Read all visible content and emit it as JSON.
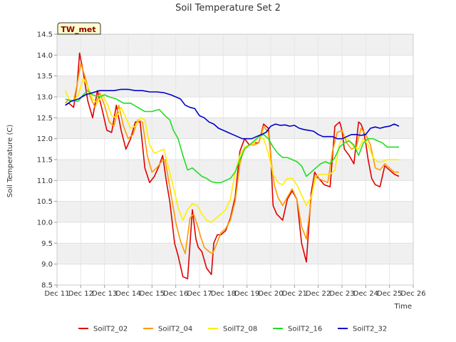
{
  "chart_data": {
    "type": "line",
    "title": "Soil Temperature Set 2",
    "xlabel": "Time",
    "ylabel": "Soil Temperature (C)",
    "badge": "TW_met",
    "xlim": [
      11,
      26
    ],
    "ylim": [
      8.5,
      14.5
    ],
    "x_tick_values": [
      11,
      12,
      13,
      14,
      15,
      16,
      17,
      18,
      19,
      20,
      21,
      22,
      23,
      24,
      25,
      26
    ],
    "x_tick_labels": [
      "Dec 11",
      "Dec 12",
      "Dec 13",
      "Dec 14",
      "Dec 15",
      "Dec 16",
      "Dec 17",
      "Dec 18",
      "Dec 19",
      "Dec 20",
      "Dec 21",
      "Dec 22",
      "Dec 23",
      "Dec 24",
      "Dec 25",
      "Dec 26"
    ],
    "y_tick_values": [
      8.5,
      9.0,
      9.5,
      10.0,
      10.5,
      11.0,
      11.5,
      12.0,
      12.5,
      13.0,
      13.5,
      14.0,
      14.5
    ],
    "y_tick_labels": [
      "8.5",
      "9.0",
      "9.5",
      "10.0",
      "10.5",
      "11.0",
      "11.5",
      "12.0",
      "12.5",
      "13.0",
      "13.5",
      "14.0",
      "14.5"
    ],
    "grid": "horizontal-bands",
    "legend_position": "bottom",
    "series": [
      {
        "name": "SoilT2_02",
        "color": "#dd0000",
        "x": [
          11.35,
          11.5,
          11.7,
          11.85,
          11.95,
          12.1,
          12.3,
          12.5,
          12.7,
          12.9,
          13.1,
          13.3,
          13.5,
          13.7,
          13.9,
          14.1,
          14.3,
          14.5,
          14.7,
          14.9,
          15.1,
          15.3,
          15.45,
          15.6,
          15.75,
          15.85,
          15.95,
          16.1,
          16.3,
          16.5,
          16.7,
          16.85,
          16.95,
          17.1,
          17.3,
          17.5,
          17.6,
          17.75,
          17.9,
          18.1,
          18.3,
          18.5,
          18.7,
          18.9,
          19.1,
          19.3,
          19.5,
          19.7,
          19.9,
          20.0,
          20.1,
          20.25,
          20.5,
          20.7,
          20.9,
          21.1,
          21.3,
          21.5,
          21.7,
          21.85,
          21.95,
          22.1,
          22.25,
          22.5,
          22.7,
          22.9,
          23.0,
          23.1,
          23.3,
          23.5,
          23.7,
          23.8,
          23.9,
          24.0,
          24.1,
          24.25,
          24.4,
          24.6,
          24.8,
          25.0,
          25.2,
          25.4
        ],
        "y": [
          12.8,
          12.85,
          12.75,
          13.3,
          14.05,
          13.6,
          12.9,
          12.5,
          13.15,
          12.7,
          12.2,
          12.15,
          12.8,
          12.2,
          11.75,
          12.0,
          12.4,
          12.4,
          11.3,
          10.95,
          11.1,
          11.35,
          11.6,
          11.0,
          10.5,
          10.0,
          9.5,
          9.2,
          8.7,
          8.65,
          10.3,
          9.6,
          9.4,
          9.3,
          8.9,
          8.75,
          9.5,
          9.7,
          9.7,
          9.8,
          10.1,
          10.6,
          11.7,
          12.0,
          11.85,
          11.9,
          11.9,
          12.35,
          12.25,
          11.6,
          10.4,
          10.2,
          10.05,
          10.55,
          10.75,
          10.55,
          9.5,
          9.05,
          10.7,
          11.2,
          11.1,
          11.0,
          10.9,
          10.85,
          12.3,
          12.4,
          12.2,
          11.75,
          11.6,
          11.4,
          12.4,
          12.35,
          12.2,
          11.9,
          11.5,
          11.05,
          10.9,
          10.85,
          11.35,
          11.25,
          11.15,
          11.1
        ]
      },
      {
        "name": "SoilT2_04",
        "color": "#ff9900",
        "x": [
          11.35,
          11.5,
          11.7,
          11.85,
          12.0,
          12.2,
          12.4,
          12.6,
          12.8,
          13.0,
          13.2,
          13.4,
          13.6,
          13.8,
          14.0,
          14.2,
          14.4,
          14.6,
          14.8,
          15.0,
          15.2,
          15.4,
          15.55,
          15.7,
          15.85,
          16.0,
          16.2,
          16.4,
          16.6,
          16.75,
          16.9,
          17.05,
          17.2,
          17.4,
          17.55,
          17.7,
          17.9,
          18.1,
          18.3,
          18.5,
          18.7,
          18.9,
          19.1,
          19.3,
          19.5,
          19.7,
          19.9,
          20.0,
          20.15,
          20.3,
          20.5,
          20.7,
          20.9,
          21.1,
          21.3,
          21.5,
          21.7,
          21.85,
          22.0,
          22.2,
          22.4,
          22.6,
          22.8,
          23.0,
          23.2,
          23.4,
          23.6,
          23.8,
          24.0,
          24.2,
          24.4,
          24.6,
          24.8,
          25.0,
          25.2,
          25.4
        ],
        "y": [
          12.85,
          12.95,
          12.9,
          13.3,
          13.8,
          13.45,
          13.0,
          12.75,
          13.1,
          12.8,
          12.4,
          12.3,
          12.8,
          12.3,
          12.0,
          12.1,
          12.45,
          12.4,
          11.6,
          11.2,
          11.3,
          11.45,
          11.5,
          11.0,
          10.5,
          10.0,
          9.55,
          9.25,
          10.1,
          10.2,
          9.95,
          9.65,
          9.4,
          9.3,
          9.25,
          9.45,
          9.75,
          9.85,
          10.05,
          10.5,
          11.4,
          11.8,
          11.85,
          11.85,
          11.9,
          12.3,
          12.15,
          11.55,
          10.9,
          10.6,
          10.4,
          10.6,
          10.8,
          10.55,
          9.9,
          9.6,
          10.55,
          11.1,
          11.05,
          11.0,
          10.95,
          11.7,
          12.15,
          12.2,
          11.9,
          11.75,
          11.8,
          12.25,
          12.1,
          11.85,
          11.3,
          11.25,
          11.4,
          11.3,
          11.2,
          11.2
        ]
      },
      {
        "name": "SoilT2_08",
        "color": "#ffee00",
        "x": [
          11.35,
          11.5,
          11.7,
          11.9,
          12.1,
          12.3,
          12.5,
          12.7,
          12.9,
          13.1,
          13.3,
          13.5,
          13.7,
          13.9,
          14.1,
          14.3,
          14.5,
          14.7,
          14.9,
          15.1,
          15.3,
          15.5,
          15.7,
          15.9,
          16.1,
          16.3,
          16.5,
          16.7,
          16.9,
          17.1,
          17.3,
          17.5,
          17.7,
          17.9,
          18.1,
          18.3,
          18.5,
          18.7,
          18.9,
          19.1,
          19.3,
          19.5,
          19.7,
          19.9,
          20.1,
          20.3,
          20.5,
          20.7,
          20.9,
          21.1,
          21.3,
          21.5,
          21.7,
          21.9,
          22.1,
          22.3,
          22.5,
          22.7,
          22.9,
          23.1,
          23.3,
          23.5,
          23.7,
          23.9,
          24.1,
          24.3,
          24.5,
          24.7,
          24.9,
          25.1,
          25.3,
          25.4
        ],
        "y": [
          13.15,
          12.95,
          12.9,
          13.05,
          13.45,
          13.25,
          12.95,
          12.85,
          13.05,
          12.85,
          12.55,
          12.5,
          12.75,
          12.5,
          12.25,
          12.3,
          12.5,
          12.45,
          11.85,
          11.65,
          11.7,
          11.75,
          11.3,
          10.85,
          10.35,
          10.05,
          10.3,
          10.45,
          10.4,
          10.2,
          10.05,
          10.0,
          10.1,
          10.2,
          10.3,
          10.55,
          11.2,
          11.6,
          11.8,
          11.85,
          11.9,
          12.05,
          12.0,
          11.65,
          11.15,
          10.95,
          10.9,
          11.05,
          11.05,
          10.9,
          10.65,
          10.4,
          10.6,
          11.1,
          11.15,
          11.15,
          11.15,
          11.25,
          11.9,
          12.05,
          11.95,
          11.8,
          11.75,
          12.0,
          11.85,
          11.55,
          11.45,
          11.45,
          11.5,
          11.5,
          11.5,
          11.5
        ]
      },
      {
        "name": "SoilT2_16",
        "color": "#22dd22",
        "x": [
          11.35,
          11.6,
          11.9,
          12.1,
          12.3,
          12.5,
          12.8,
          13.0,
          13.2,
          13.5,
          13.8,
          14.1,
          14.4,
          14.7,
          15.0,
          15.3,
          15.55,
          15.75,
          15.9,
          16.1,
          16.3,
          16.5,
          16.7,
          16.9,
          17.1,
          17.3,
          17.5,
          17.7,
          17.9,
          18.1,
          18.3,
          18.5,
          18.7,
          18.9,
          19.1,
          19.3,
          19.5,
          19.7,
          19.9,
          20.1,
          20.3,
          20.5,
          20.7,
          20.9,
          21.1,
          21.3,
          21.5,
          21.7,
          21.9,
          22.1,
          22.3,
          22.5,
          22.7,
          22.9,
          23.1,
          23.3,
          23.5,
          23.7,
          23.9,
          24.1,
          24.3,
          24.5,
          24.7,
          24.9,
          25.1,
          25.4
        ],
        "y": [
          12.95,
          12.9,
          12.9,
          13.05,
          13.15,
          13.05,
          13.0,
          13.05,
          13.0,
          12.95,
          12.85,
          12.85,
          12.75,
          12.65,
          12.65,
          12.7,
          12.55,
          12.45,
          12.2,
          12.0,
          11.6,
          11.25,
          11.3,
          11.2,
          11.1,
          11.05,
          10.97,
          10.95,
          10.95,
          11.0,
          11.05,
          11.2,
          11.5,
          11.75,
          11.85,
          11.95,
          12.05,
          12.1,
          12.0,
          11.8,
          11.65,
          11.55,
          11.55,
          11.5,
          11.45,
          11.35,
          11.1,
          11.2,
          11.3,
          11.4,
          11.45,
          11.4,
          11.55,
          11.8,
          11.9,
          11.95,
          11.85,
          11.6,
          11.9,
          12.0,
          12.0,
          11.95,
          11.9,
          11.8,
          11.8,
          11.8
        ]
      },
      {
        "name": "SoilT2_32",
        "color": "#0000cc",
        "x": [
          11.35,
          11.6,
          11.9,
          12.2,
          12.5,
          12.8,
          13.1,
          13.4,
          13.7,
          14.0,
          14.3,
          14.6,
          14.9,
          15.2,
          15.5,
          15.8,
          16.0,
          16.2,
          16.4,
          16.6,
          16.8,
          17.0,
          17.2,
          17.4,
          17.6,
          17.8,
          18.0,
          18.2,
          18.4,
          18.6,
          18.8,
          19.0,
          19.2,
          19.4,
          19.6,
          19.8,
          20.0,
          20.2,
          20.4,
          20.6,
          20.8,
          21.0,
          21.2,
          21.4,
          21.6,
          21.8,
          22.0,
          22.2,
          22.4,
          22.6,
          22.8,
          23.0,
          23.2,
          23.4,
          23.6,
          23.8,
          24.0,
          24.2,
          24.4,
          24.6,
          24.8,
          25.0,
          25.2,
          25.4
        ],
        "y": [
          12.8,
          12.9,
          12.95,
          13.05,
          13.1,
          13.15,
          13.15,
          13.15,
          13.18,
          13.18,
          13.15,
          13.15,
          13.12,
          13.12,
          13.1,
          13.05,
          13.0,
          12.95,
          12.8,
          12.75,
          12.72,
          12.55,
          12.5,
          12.4,
          12.35,
          12.25,
          12.2,
          12.15,
          12.1,
          12.05,
          12.0,
          12.0,
          12.0,
          12.05,
          12.1,
          12.15,
          12.3,
          12.35,
          12.32,
          12.33,
          12.3,
          12.32,
          12.25,
          12.22,
          12.2,
          12.18,
          12.1,
          12.05,
          12.05,
          12.05,
          12.0,
          12.0,
          12.05,
          12.1,
          12.1,
          12.08,
          12.1,
          12.25,
          12.28,
          12.25,
          12.28,
          12.3,
          12.35,
          12.3
        ]
      }
    ]
  }
}
